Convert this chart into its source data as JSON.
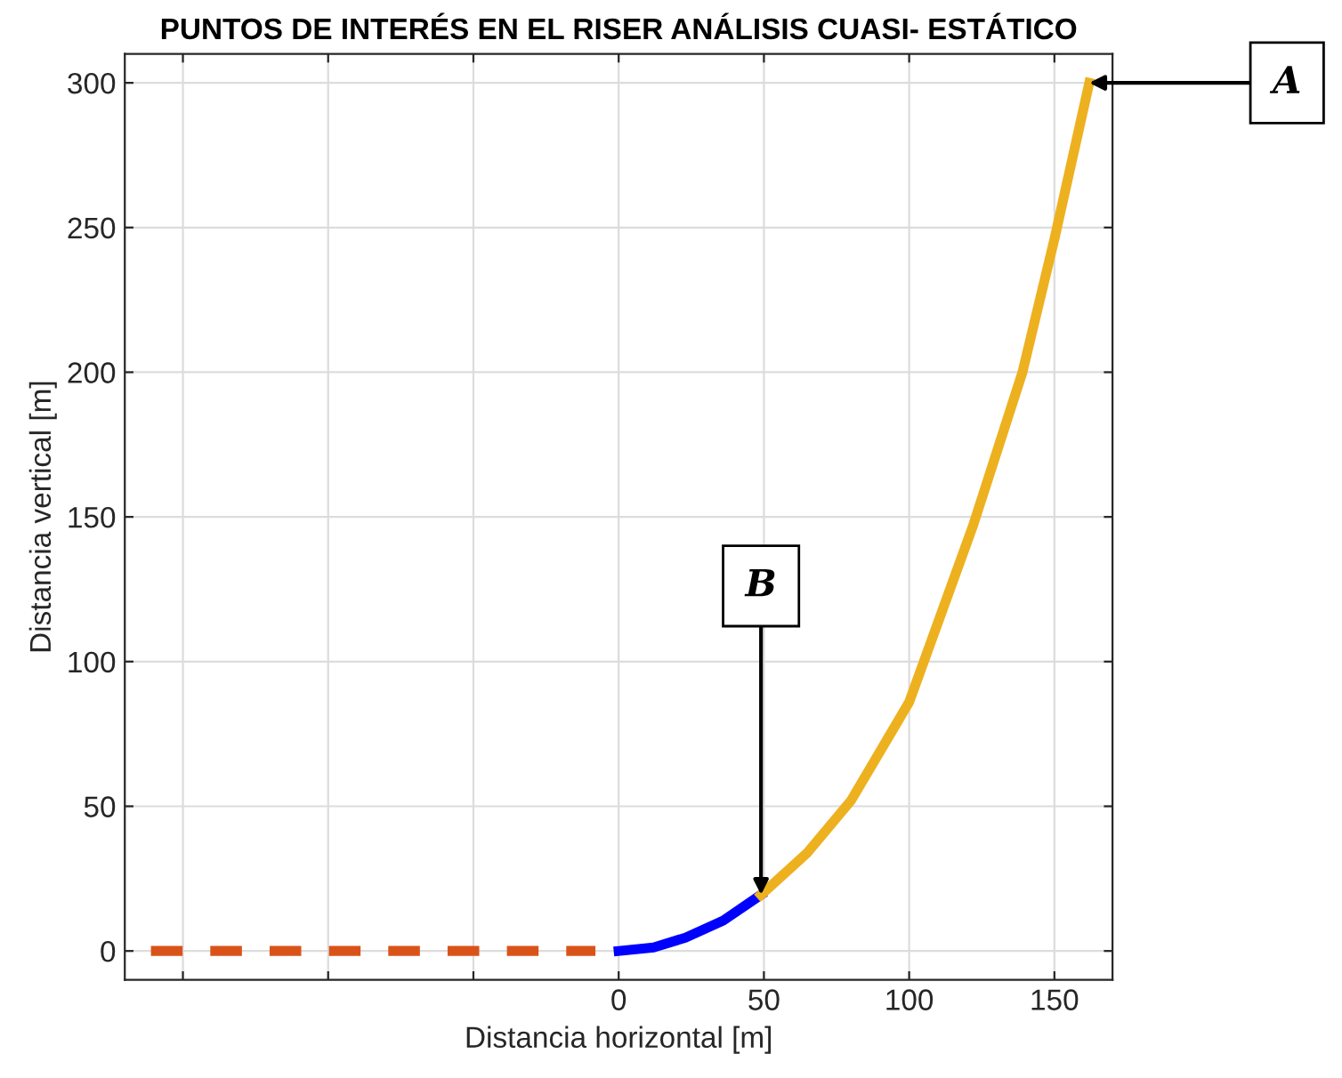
{
  "chart_data": {
    "type": "line",
    "title": "PUNTOS DE INTERÉS EN EL RISER ANÁLISIS CUASI- ESTÁTICO",
    "xlabel": "Distancia horizontal [m]",
    "ylabel": "Distancia vertical [m]",
    "series": [
      {
        "color": "#d95319",
        "line_style": "dashed",
        "x": [
          -161,
          -8
        ],
        "values": [
          0,
          0
        ]
      },
      {
        "color": "#0000ff",
        "x": [
          0,
          12,
          23,
          36,
          49
        ],
        "values": [
          0,
          1.2,
          4.6,
          10.5,
          19.4
        ]
      },
      {
        "color": "#edb120",
        "x": [
          49,
          65,
          80,
          100,
          122,
          139,
          150,
          162
        ],
        "values": [
          19.4,
          34,
          52,
          86,
          147,
          200,
          246,
          300
        ]
      }
    ],
    "annotations": [
      {
        "text": "A",
        "x": 162,
        "y": 300
      },
      {
        "text": "B",
        "x": 49,
        "y": 19.4
      }
    ],
    "xlim": [
      -170,
      170
    ],
    "ylim": [
      -10,
      310
    ],
    "xticks": [
      {
        "value": -150,
        "label": null
      },
      {
        "value": -100,
        "label": null
      },
      {
        "value": -50,
        "label": null
      },
      0,
      50,
      100,
      150
    ],
    "yticks": [
      0,
      50,
      100,
      150,
      200,
      250,
      300
    ],
    "grid": true
  }
}
